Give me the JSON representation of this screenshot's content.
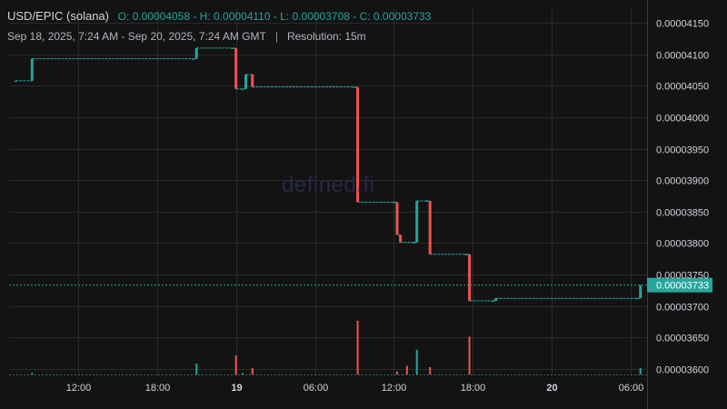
{
  "header": {
    "pair": "USD/EPIC (solana)",
    "ohlc": "O: 0.00004058 - H: 0.00004110 - L: 0.00003708 - C: 0.00003733"
  },
  "subheader": {
    "range": "Sep 18, 2025, 7:24 AM - Sep 20, 2025, 7:24 AM GMT",
    "separator": "|",
    "resolution": "Resolution: 15m"
  },
  "watermark": "defined.fi",
  "colors": {
    "background": "#131313",
    "up": "#26a69a",
    "down": "#ef5350",
    "grid": "#2a2a2a",
    "text": "#d1d4dc"
  },
  "chart_data": {
    "type": "candlestick",
    "y_ticks": [
      4.15e-05,
      4.1e-05,
      4.05e-05,
      4e-05,
      3.95e-05,
      3.9e-05,
      3.85e-05,
      3.8e-05,
      3.75e-05,
      3.7e-05,
      3.65e-05,
      3.6e-05
    ],
    "y_tick_labels": [
      "0.00004150",
      "0.00004100",
      "0.00004050",
      "0.00004000",
      "0.00003950",
      "0.00003900",
      "0.00003850",
      "0.00003800",
      "0.00003750",
      "0.00003700",
      "0.00003650",
      "0.00003600"
    ],
    "ylim": [
      3.588e-05,
      4.172e-05
    ],
    "x_ticks": [
      {
        "label": "12:00",
        "hour": 12,
        "bold": false
      },
      {
        "label": "18:00",
        "hour": 18,
        "bold": false
      },
      {
        "label": "19",
        "hour": 24,
        "bold": true
      },
      {
        "label": "06:00",
        "hour": 30,
        "bold": false
      },
      {
        "label": "12:00",
        "hour": 36,
        "bold": false
      },
      {
        "label": "18:00",
        "hour": 42,
        "bold": false
      },
      {
        "label": "20",
        "hour": 48,
        "bold": true
      },
      {
        "label": "06:00",
        "hour": 54,
        "bold": false
      }
    ],
    "x_range_hours": [
      6.75,
      55.25
    ],
    "last_price": 3.733e-05,
    "last_price_label": "0.00003733",
    "candles": [
      {
        "h": 7.25,
        "o": 4.058e-05,
        "c": 4.058e-05
      },
      {
        "h": 8.5,
        "o": 4.058e-05,
        "c": 4.093e-05
      },
      {
        "h": 20.75,
        "o": 4.093e-05,
        "c": 4.093e-05
      },
      {
        "h": 21.0,
        "o": 4.093e-05,
        "c": 4.11e-05
      },
      {
        "h": 23.75,
        "o": 4.11e-05,
        "c": 4.11e-05
      },
      {
        "h": 24.0,
        "o": 4.11e-05,
        "c": 4.045e-05
      },
      {
        "h": 24.5,
        "o": 4.045e-05,
        "c": 4.045e-05
      },
      {
        "h": 24.75,
        "o": 4.045e-05,
        "c": 4.068e-05
      },
      {
        "h": 25.25,
        "o": 4.068e-05,
        "c": 4.048e-05
      },
      {
        "h": 33.0,
        "o": 4.048e-05,
        "c": 4.048e-05
      },
      {
        "h": 33.25,
        "o": 4.048e-05,
        "c": 3.865e-05
      },
      {
        "h": 36.0,
        "o": 3.865e-05,
        "c": 3.865e-05
      },
      {
        "h": 36.25,
        "o": 3.865e-05,
        "c": 3.813e-05
      },
      {
        "h": 36.5,
        "o": 3.813e-05,
        "c": 3.801e-05
      },
      {
        "h": 37.5,
        "o": 3.801e-05,
        "c": 3.801e-05
      },
      {
        "h": 37.75,
        "o": 3.801e-05,
        "c": 3.867e-05
      },
      {
        "h": 38.5,
        "o": 3.867e-05,
        "c": 3.867e-05
      },
      {
        "h": 38.75,
        "o": 3.867e-05,
        "c": 3.782e-05
      },
      {
        "h": 41.5,
        "o": 3.782e-05,
        "c": 3.782e-05
      },
      {
        "h": 41.75,
        "o": 3.782e-05,
        "c": 3.708e-05
      },
      {
        "h": 43.5,
        "o": 3.708e-05,
        "c": 3.708e-05
      },
      {
        "h": 43.75,
        "o": 3.708e-05,
        "c": 3.712e-05
      },
      {
        "h": 54.5,
        "o": 3.712e-05,
        "c": 3.712e-05
      },
      {
        "h": 54.75,
        "o": 3.712e-05,
        "c": 3.733e-05
      }
    ],
    "volume": [
      {
        "h": 8.5,
        "v": 0.02,
        "up": true
      },
      {
        "h": 21.0,
        "v": 0.15,
        "up": true
      },
      {
        "h": 24.0,
        "v": 0.26,
        "up": false
      },
      {
        "h": 24.5,
        "v": 0.02,
        "up": true
      },
      {
        "h": 25.25,
        "v": 0.09,
        "up": false
      },
      {
        "h": 33.25,
        "v": 0.74,
        "up": false
      },
      {
        "h": 36.25,
        "v": 0.04,
        "up": false
      },
      {
        "h": 37.0,
        "v": 0.12,
        "up": false
      },
      {
        "h": 37.75,
        "v": 0.34,
        "up": true
      },
      {
        "h": 38.75,
        "v": 0.1,
        "up": false
      },
      {
        "h": 41.75,
        "v": 0.52,
        "up": false
      },
      {
        "h": 54.75,
        "v": 0.09,
        "up": true
      }
    ]
  }
}
